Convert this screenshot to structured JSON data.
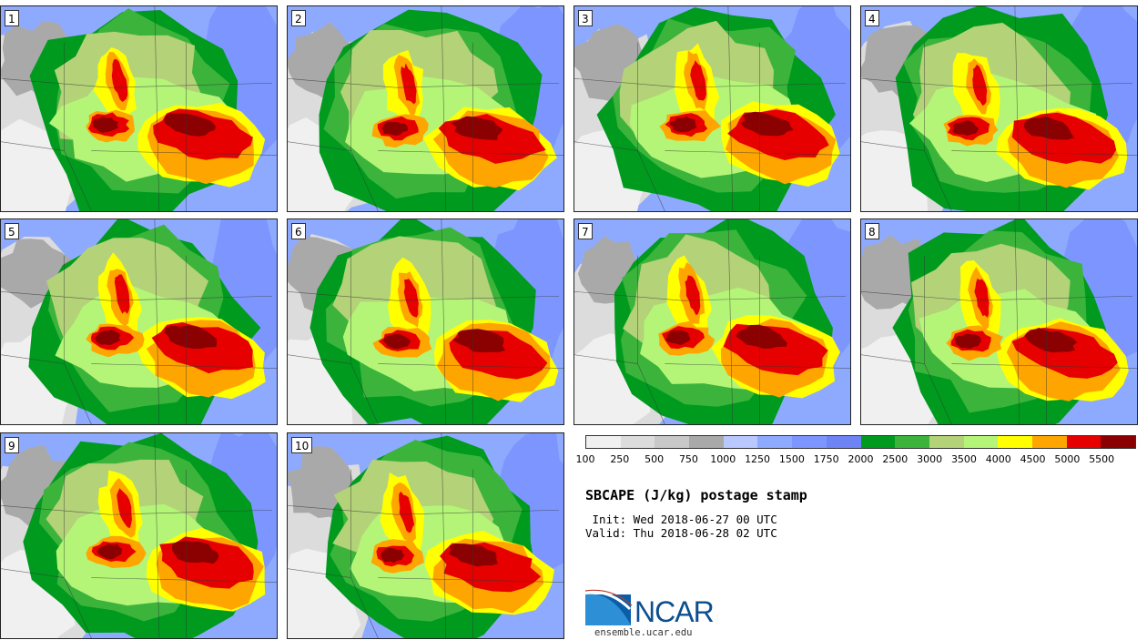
{
  "panels": [
    {
      "label": "1"
    },
    {
      "label": "2"
    },
    {
      "label": "3"
    },
    {
      "label": "4"
    },
    {
      "label": "5"
    },
    {
      "label": "6"
    },
    {
      "label": "7"
    },
    {
      "label": "8"
    },
    {
      "label": "9"
    },
    {
      "label": "10"
    }
  ],
  "colorbar": {
    "colors": [
      "#f0f0f0",
      "#dcdcdc",
      "#c8c8c8",
      "#a9a9a9",
      "#b9c8ff",
      "#8eaaff",
      "#7d96ff",
      "#6e84f5",
      "#009b1e",
      "#3cb43c",
      "#b4d278",
      "#b4f578",
      "#ffff00",
      "#ffa500",
      "#e60000",
      "#8b0000"
    ],
    "labels": [
      "100",
      "250",
      "500",
      "750",
      "1000",
      "1250",
      "1500",
      "1750",
      "2000",
      "2500",
      "3000",
      "3500",
      "4000",
      "4500",
      "5000",
      "5500"
    ]
  },
  "title": "SBCAPE (J/kg) postage stamp",
  "init": " Init: Wed 2018-06-27 00 UTC",
  "valid": "Valid: Thu 2018-06-28 02 UTC",
  "logo": {
    "text": "NCAR",
    "site": "ensemble.ucar.edu"
  }
}
